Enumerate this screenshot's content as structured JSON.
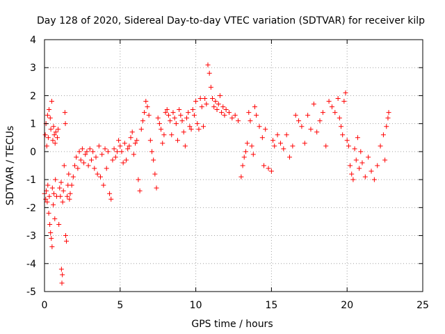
{
  "chart_data": {
    "type": "scatter",
    "title": "Day 128 of 2020, Sidereal Day-to-day VTEC variation (SDTVAR) for receiver kilp",
    "xlabel": "GPS time / hours",
    "ylabel": "SDTVAR / TECUs",
    "xlim": [
      0,
      25
    ],
    "ylim": [
      -5,
      4
    ],
    "xticks": [
      0,
      5,
      10,
      15,
      20,
      25
    ],
    "yticks": [
      -5,
      -4,
      -3,
      -2,
      -1,
      0,
      1,
      2,
      3,
      4
    ],
    "grid": true,
    "marker": "+",
    "color": "#ff0000",
    "series": [
      {
        "name": "SDTVAR",
        "points": [
          [
            0.0,
            -1.5
          ],
          [
            0.05,
            0.6
          ],
          [
            0.08,
            -1.7
          ],
          [
            0.1,
            1.0
          ],
          [
            0.12,
            -1.4
          ],
          [
            0.15,
            0.2
          ],
          [
            0.18,
            -1.8
          ],
          [
            0.2,
            1.3
          ],
          [
            0.22,
            -1.2
          ],
          [
            0.25,
            0.5
          ],
          [
            0.28,
            -2.2
          ],
          [
            0.3,
            1.5
          ],
          [
            0.32,
            -1.6
          ],
          [
            0.35,
            -2.6
          ],
          [
            0.38,
            1.2
          ],
          [
            0.4,
            -2.9
          ],
          [
            0.42,
            0.8
          ],
          [
            0.45,
            -3.1
          ],
          [
            0.48,
            1.8
          ],
          [
            0.5,
            -3.4
          ],
          [
            0.52,
            -1.3
          ],
          [
            0.55,
            0.4
          ],
          [
            0.58,
            -1.9
          ],
          [
            0.6,
            0.9
          ],
          [
            0.62,
            -1.5
          ],
          [
            0.65,
            0.6
          ],
          [
            0.68,
            -2.4
          ],
          [
            0.7,
            0.3
          ],
          [
            0.72,
            -1.0
          ],
          [
            0.75,
            0.7
          ],
          [
            0.8,
            -1.6
          ],
          [
            0.85,
            0.5
          ],
          [
            0.9,
            0.8
          ],
          [
            0.95,
            -2.6
          ],
          [
            1.0,
            -1.3
          ],
          [
            1.05,
            -1.6
          ],
          [
            1.1,
            -1.1
          ],
          [
            1.12,
            -4.2
          ],
          [
            1.15,
            -4.7
          ],
          [
            1.18,
            -4.4
          ],
          [
            1.2,
            -1.8
          ],
          [
            1.25,
            -1.4
          ],
          [
            1.3,
            -0.5
          ],
          [
            1.35,
            1.4
          ],
          [
            1.38,
            1.0
          ],
          [
            1.4,
            -3.0
          ],
          [
            1.45,
            -3.2
          ],
          [
            1.5,
            -1.6
          ],
          [
            1.55,
            -1.2
          ],
          [
            1.6,
            -0.8
          ],
          [
            1.65,
            -1.7
          ],
          [
            1.7,
            -1.5
          ],
          [
            1.8,
            -1.2
          ],
          [
            1.9,
            -0.9
          ],
          [
            2.0,
            -0.5
          ],
          [
            2.1,
            -0.2
          ],
          [
            2.2,
            -0.6
          ],
          [
            2.3,
            0.0
          ],
          [
            2.4,
            -0.3
          ],
          [
            2.5,
            0.1
          ],
          [
            2.6,
            -0.4
          ],
          [
            2.7,
            -0.1
          ],
          [
            2.8,
            0.0
          ],
          [
            2.9,
            -0.5
          ],
          [
            3.0,
            0.1
          ],
          [
            3.1,
            -0.3
          ],
          [
            3.2,
            0.0
          ],
          [
            3.3,
            -0.6
          ],
          [
            3.4,
            -0.2
          ],
          [
            3.5,
            -0.8
          ],
          [
            3.6,
            0.2
          ],
          [
            3.7,
            -0.9
          ],
          [
            3.8,
            -0.1
          ],
          [
            3.9,
            -1.2
          ],
          [
            4.0,
            0.1
          ],
          [
            4.1,
            -0.6
          ],
          [
            4.2,
            0.0
          ],
          [
            4.3,
            -1.5
          ],
          [
            4.4,
            -1.7
          ],
          [
            4.5,
            -0.3
          ],
          [
            4.6,
            0.1
          ],
          [
            4.7,
            -0.2
          ],
          [
            4.8,
            0.0
          ],
          [
            4.9,
            0.4
          ],
          [
            5.0,
            0.2
          ],
          [
            5.1,
            0.0
          ],
          [
            5.2,
            -0.4
          ],
          [
            5.3,
            0.3
          ],
          [
            5.4,
            -0.3
          ],
          [
            5.5,
            0.1
          ],
          [
            5.6,
            0.2
          ],
          [
            5.7,
            0.5
          ],
          [
            5.8,
            0.7
          ],
          [
            5.9,
            -0.1
          ],
          [
            6.0,
            0.3
          ],
          [
            6.1,
            0.4
          ],
          [
            6.2,
            -1.0
          ],
          [
            6.3,
            -1.4
          ],
          [
            6.4,
            0.8
          ],
          [
            6.5,
            1.1
          ],
          [
            6.6,
            1.4
          ],
          [
            6.7,
            1.8
          ],
          [
            6.8,
            1.6
          ],
          [
            6.9,
            1.3
          ],
          [
            7.0,
            0.4
          ],
          [
            7.1,
            0.0
          ],
          [
            7.2,
            -0.3
          ],
          [
            7.3,
            -0.8
          ],
          [
            7.4,
            -1.3
          ],
          [
            7.5,
            1.2
          ],
          [
            7.6,
            1.0
          ],
          [
            7.7,
            0.8
          ],
          [
            7.8,
            0.3
          ],
          [
            7.9,
            0.6
          ],
          [
            8.0,
            1.4
          ],
          [
            8.1,
            1.5
          ],
          [
            8.2,
            1.3
          ],
          [
            8.3,
            1.1
          ],
          [
            8.4,
            0.6
          ],
          [
            8.5,
            1.4
          ],
          [
            8.6,
            1.2
          ],
          [
            8.7,
            1.0
          ],
          [
            8.8,
            0.4
          ],
          [
            8.9,
            1.5
          ],
          [
            9.0,
            1.3
          ],
          [
            9.1,
            1.1
          ],
          [
            9.2,
            0.7
          ],
          [
            9.3,
            0.2
          ],
          [
            9.4,
            1.2
          ],
          [
            9.5,
            1.4
          ],
          [
            9.6,
            0.9
          ],
          [
            9.7,
            0.8
          ],
          [
            9.8,
            1.5
          ],
          [
            9.9,
            1.3
          ],
          [
            10.0,
            1.8
          ],
          [
            10.1,
            1.0
          ],
          [
            10.2,
            0.8
          ],
          [
            10.3,
            1.9
          ],
          [
            10.4,
            1.6
          ],
          [
            10.5,
            0.9
          ],
          [
            10.6,
            1.9
          ],
          [
            10.7,
            1.7
          ],
          [
            10.8,
            3.1
          ],
          [
            10.9,
            2.8
          ],
          [
            11.0,
            2.3
          ],
          [
            11.1,
            1.9
          ],
          [
            11.2,
            1.6
          ],
          [
            11.3,
            1.8
          ],
          [
            11.4,
            1.5
          ],
          [
            11.5,
            1.7
          ],
          [
            11.6,
            2.0
          ],
          [
            11.7,
            1.4
          ],
          [
            11.8,
            1.6
          ],
          [
            11.9,
            1.3
          ],
          [
            12.0,
            1.5
          ],
          [
            12.2,
            1.4
          ],
          [
            12.4,
            1.2
          ],
          [
            12.6,
            1.3
          ],
          [
            12.8,
            1.1
          ],
          [
            13.0,
            -0.9
          ],
          [
            13.1,
            -0.5
          ],
          [
            13.2,
            -0.2
          ],
          [
            13.3,
            0.0
          ],
          [
            13.4,
            0.3
          ],
          [
            13.5,
            1.4
          ],
          [
            13.6,
            1.1
          ],
          [
            13.7,
            0.2
          ],
          [
            13.8,
            -0.1
          ],
          [
            13.9,
            1.6
          ],
          [
            14.0,
            1.3
          ],
          [
            14.2,
            0.9
          ],
          [
            14.4,
            0.5
          ],
          [
            14.5,
            -0.5
          ],
          [
            14.6,
            0.8
          ],
          [
            14.8,
            -0.6
          ],
          [
            15.0,
            -0.7
          ],
          [
            15.1,
            0.4
          ],
          [
            15.2,
            0.2
          ],
          [
            15.4,
            0.6
          ],
          [
            15.6,
            0.3
          ],
          [
            15.8,
            0.1
          ],
          [
            16.0,
            0.6
          ],
          [
            16.2,
            -0.2
          ],
          [
            16.4,
            0.2
          ],
          [
            16.6,
            1.3
          ],
          [
            16.8,
            1.1
          ],
          [
            17.0,
            0.9
          ],
          [
            17.2,
            0.3
          ],
          [
            17.4,
            1.3
          ],
          [
            17.6,
            0.8
          ],
          [
            17.8,
            1.7
          ],
          [
            18.0,
            0.7
          ],
          [
            18.2,
            1.1
          ],
          [
            18.4,
            1.4
          ],
          [
            18.6,
            0.2
          ],
          [
            18.8,
            1.8
          ],
          [
            19.0,
            1.6
          ],
          [
            19.2,
            1.4
          ],
          [
            19.4,
            1.9
          ],
          [
            19.5,
            1.2
          ],
          [
            19.6,
            0.9
          ],
          [
            19.7,
            0.6
          ],
          [
            19.8,
            1.8
          ],
          [
            19.9,
            2.1
          ],
          [
            20.0,
            0.4
          ],
          [
            20.1,
            0.2
          ],
          [
            20.2,
            -0.5
          ],
          [
            20.3,
            -0.8
          ],
          [
            20.4,
            -1.0
          ],
          [
            20.5,
            0.1
          ],
          [
            20.6,
            -0.3
          ],
          [
            20.7,
            0.5
          ],
          [
            20.8,
            -0.6
          ],
          [
            20.9,
            0.0
          ],
          [
            21.0,
            -0.4
          ],
          [
            21.2,
            -0.9
          ],
          [
            21.4,
            -0.2
          ],
          [
            21.6,
            -0.7
          ],
          [
            21.8,
            -1.0
          ],
          [
            22.0,
            -0.5
          ],
          [
            22.2,
            0.2
          ],
          [
            22.4,
            0.6
          ],
          [
            22.5,
            -0.3
          ],
          [
            22.6,
            0.9
          ],
          [
            22.7,
            1.2
          ],
          [
            22.75,
            1.4
          ]
        ]
      }
    ]
  }
}
